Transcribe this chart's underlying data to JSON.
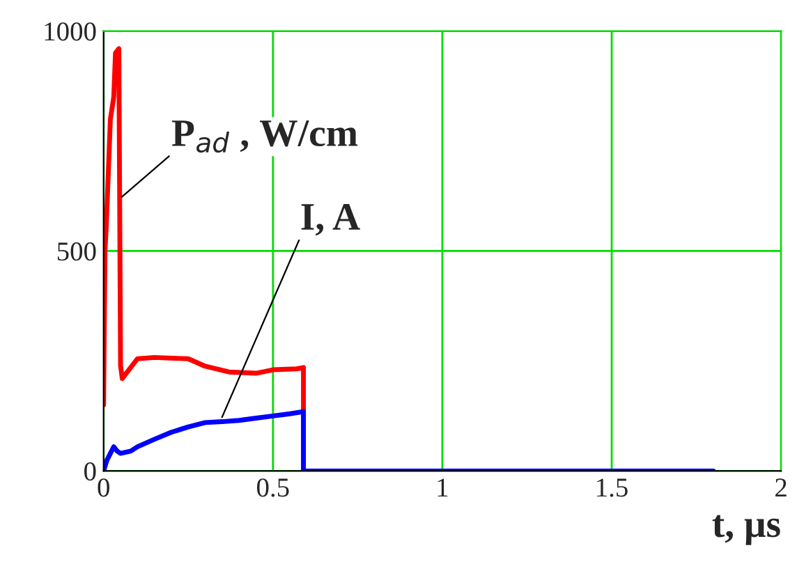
{
  "chart_data": {
    "type": "line",
    "xlabel": "t, μs",
    "series": [
      {
        "color": "#ff0000",
        "x": [
          0,
          0.004,
          0.008,
          0.015,
          0.02,
          0.03,
          0.035,
          0.045,
          0.05,
          0.055,
          0.07,
          0.1,
          0.15,
          0.25,
          0.3,
          0.37,
          0.45,
          0.5,
          0.57,
          0.59,
          0.59
        ],
        "values": [
          150,
          500,
          560,
          700,
          800,
          850,
          950,
          960,
          240,
          210,
          225,
          255,
          258,
          255,
          238,
          225,
          222,
          230,
          232,
          235,
          0
        ]
      },
      {
        "color": "#0000ff",
        "x": [
          0,
          0.01,
          0.03,
          0.04,
          0.05,
          0.08,
          0.1,
          0.15,
          0.2,
          0.25,
          0.3,
          0.35,
          0.4,
          0.45,
          0.5,
          0.55,
          0.59,
          0.59,
          1.8
        ],
        "values": [
          0,
          25,
          55,
          45,
          40,
          45,
          55,
          72,
          88,
          100,
          110,
          112,
          115,
          120,
          125,
          130,
          135,
          0,
          0
        ]
      }
    ],
    "xlim": [
      0,
      2
    ],
    "ylim": [
      0,
      1000
    ],
    "xticks": [
      0,
      0.5,
      1,
      1.5,
      2
    ],
    "yticks": [
      0,
      500,
      1000
    ],
    "grid": true,
    "annotations": [
      {
        "text": "P$_{ad}$ , W/cm",
        "x": 0.045,
        "y": 617
      },
      {
        "text": "I, A",
        "x": 0.345,
        "y": 114
      }
    ]
  }
}
